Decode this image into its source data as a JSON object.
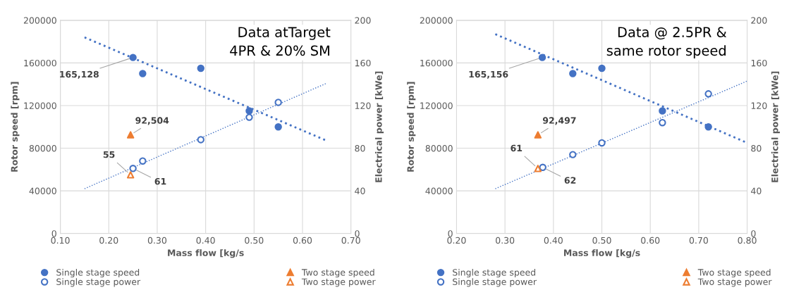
{
  "chart_data": [
    {
      "type": "scatter",
      "title": "Data atTarget\n4PR & 20% SM",
      "xlabel": "Mass flow [kg/s",
      "ylabel": "Rotor speed [rpm]",
      "y2label": "Electrical power [kWe]",
      "xlim": [
        0.1,
        0.7
      ],
      "xticks": [
        {
          "value": 0.1,
          "label": "0.10"
        },
        {
          "value": 0.2,
          "label": "0.20"
        },
        {
          "value": 0.3,
          "label": "0.30"
        },
        {
          "value": 0.4,
          "label": "0.40"
        },
        {
          "value": 0.5,
          "label": "0.50"
        },
        {
          "value": 0.6,
          "label": "0.60"
        },
        {
          "value": 0.7,
          "label": "0.70"
        }
      ],
      "ylim": [
        0,
        200000
      ],
      "yticks": [
        0,
        40000,
        80000,
        120000,
        160000,
        200000
      ],
      "y2lim": [
        0,
        200
      ],
      "y2ticks": [
        0,
        40,
        80,
        120,
        160,
        200
      ],
      "grid": true,
      "legend": "bottom",
      "series": [
        {
          "name": "Single stage speed",
          "color": "#4472c4",
          "marker": "circle",
          "x": [
            0.25,
            0.27,
            0.39,
            0.49,
            0.55
          ],
          "values": [
            165128,
            150000,
            155000,
            115000,
            100000
          ],
          "value_labels": [
            "165,128",
            null,
            null,
            null,
            null
          ]
        },
        {
          "name": "Single stage power",
          "color": "#4472c4",
          "marker": "circle",
          "axis": "y2",
          "x": [
            0.25,
            0.27,
            0.39,
            0.49,
            0.55
          ],
          "values": [
            61,
            68,
            88,
            109,
            123
          ],
          "value_labels": [
            "61",
            null,
            null,
            null,
            null
          ]
        },
        {
          "name": "Two stage speed",
          "color": "#ed7d31",
          "marker": "triangle",
          "x": [
            0.245
          ],
          "values": [
            92504
          ],
          "value_labels": [
            "92,504"
          ]
        },
        {
          "name": "Two stage power",
          "color": "#ed7d31",
          "marker": "triangle",
          "axis": "y2",
          "x": [
            0.245
          ],
          "values": [
            55
          ],
          "value_labels": [
            "55"
          ]
        },
        {
          "type": "line",
          "color": "#4472c4",
          "line_style": "dotted",
          "x": [
            0.15,
            0.65
          ],
          "values": [
            184000,
            87000
          ]
        },
        {
          "type": "line",
          "color": "#4472c4",
          "line_style": "dotted",
          "axis": "y2",
          "x": [
            0.15,
            0.65
          ],
          "values": [
            42,
            141
          ]
        }
      ]
    },
    {
      "type": "scatter",
      "title": "Data @ 2.5PR &\nsame rotor speed",
      "xlabel": "Mass flow [kg/s",
      "ylabel": "Rotor speed [rpm]",
      "y2label": "Electrical power [kWe]",
      "xlim": [
        0.2,
        0.8
      ],
      "xticks": [
        {
          "value": 0.2,
          "label": "0.20"
        },
        {
          "value": 0.3,
          "label": "0.30"
        },
        {
          "value": 0.4,
          "label": "0.40"
        },
        {
          "value": 0.5,
          "label": "0.50"
        },
        {
          "value": 0.6,
          "label": "0.60"
        },
        {
          "value": 0.7,
          "label": "0.70"
        },
        {
          "value": 0.8,
          "label": "0.80"
        }
      ],
      "ylim": [
        0,
        200000
      ],
      "yticks": [
        0,
        40000,
        80000,
        120000,
        160000,
        200000
      ],
      "y2lim": [
        0,
        200
      ],
      "y2ticks": [
        0,
        40,
        80,
        120,
        160,
        200
      ],
      "grid": true,
      "legend": "bottom",
      "series": [
        {
          "name": "Single stage speed",
          "color": "#4472c4",
          "marker": "circle",
          "x": [
            0.377,
            0.44,
            0.5,
            0.625,
            0.72
          ],
          "values": [
            165156,
            150000,
            155000,
            115000,
            100000
          ],
          "value_labels": [
            "165,156",
            null,
            null,
            null,
            null
          ]
        },
        {
          "name": "Single stage power",
          "color": "#4472c4",
          "marker": "circle",
          "axis": "y2",
          "x": [
            0.378,
            0.44,
            0.5,
            0.625,
            0.72
          ],
          "values": [
            62,
            74,
            85,
            104,
            131
          ],
          "value_labels": [
            "62",
            null,
            null,
            null,
            null
          ]
        },
        {
          "name": "Two stage speed",
          "color": "#ed7d31",
          "marker": "triangle",
          "x": [
            0.368
          ],
          "values": [
            92497
          ],
          "value_labels": [
            "92,497"
          ]
        },
        {
          "name": "Two stage power",
          "color": "#ed7d31",
          "marker": "triangle",
          "axis": "y2",
          "x": [
            0.368
          ],
          "values": [
            61
          ],
          "value_labels": [
            "61"
          ]
        },
        {
          "type": "line",
          "color": "#4472c4",
          "line_style": "dotted",
          "x": [
            0.28,
            0.8
          ],
          "values": [
            187000,
            85000
          ]
        },
        {
          "type": "line",
          "color": "#4472c4",
          "line_style": "dotted",
          "axis": "y2",
          "x": [
            0.28,
            0.8
          ],
          "values": [
            42,
            143
          ]
        }
      ]
    }
  ]
}
